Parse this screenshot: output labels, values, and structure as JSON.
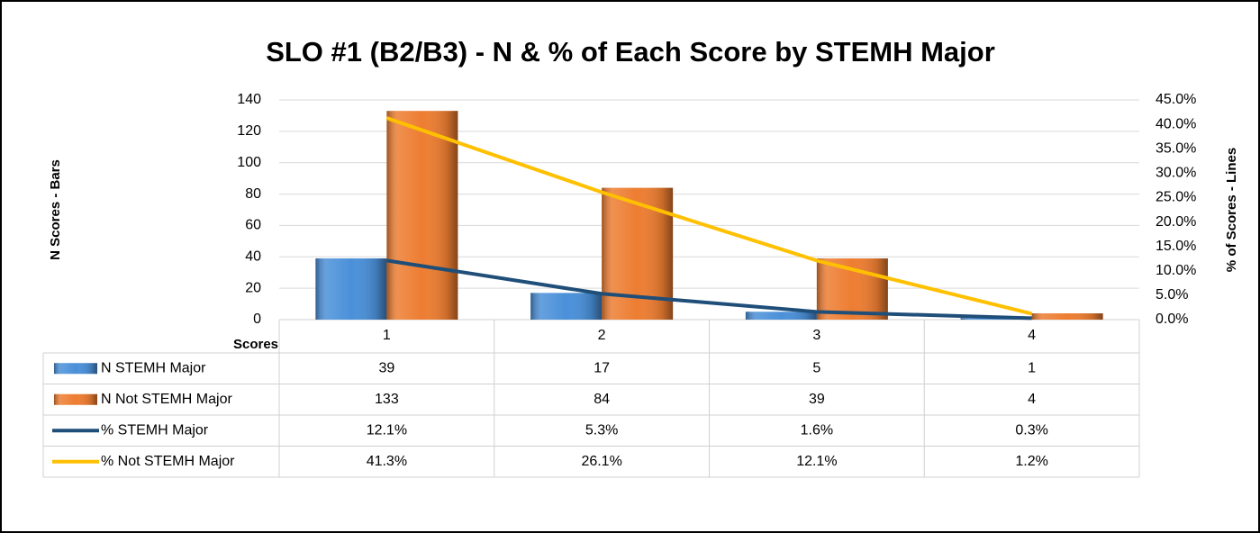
{
  "chart_data": {
    "type": "bar",
    "title": "SLO #1 (B2/B3) - N & % of Each Score by STEMH Major",
    "y_label": "N Scores - Bars",
    "y2_label": "% of Scores - Lines",
    "x_label": "Scores",
    "categories": [
      "1",
      "2",
      "3",
      "4"
    ],
    "series": [
      {
        "name": "N STEMH Major",
        "type": "bar",
        "color": "#4a90d9",
        "values": [
          39,
          17,
          5,
          1
        ]
      },
      {
        "name": "N Not STEMH Major",
        "type": "bar",
        "color": "#ed7d31",
        "values": [
          133,
          84,
          39,
          4
        ]
      },
      {
        "name": "% STEMH Major",
        "type": "line",
        "axis": "y2",
        "color": "#1f4e79",
        "values": [
          12.1,
          5.3,
          1.6,
          0.3
        ],
        "value_labels": [
          "12.1%",
          "5.3%",
          "1.6%",
          "0.3%"
        ]
      },
      {
        "name": "% Not STEMH Major",
        "type": "line",
        "axis": "y2",
        "color": "#ffc000",
        "values": [
          41.3,
          26.1,
          12.1,
          1.2
        ],
        "value_labels": [
          "41.3%",
          "26.1%",
          "12.1%",
          "1.2%"
        ]
      }
    ],
    "ylim": [
      0,
      140
    ],
    "yticks": [
      0,
      20,
      40,
      60,
      80,
      100,
      120,
      140
    ],
    "y2lim": [
      0,
      45
    ],
    "y2ticks": [
      {
        "value": 0,
        "label": "0.0%"
      },
      {
        "value": 5,
        "label": "5.0%"
      },
      {
        "value": 10,
        "label": "10.0%"
      },
      {
        "value": 15,
        "label": "15.0%"
      },
      {
        "value": 20,
        "label": "20.0%"
      },
      {
        "value": 25,
        "label": "25.0%"
      },
      {
        "value": 30,
        "label": "30.0%"
      },
      {
        "value": 35,
        "label": "35.0%"
      },
      {
        "value": 40,
        "label": "40.0%"
      },
      {
        "value": 45,
        "label": "45.0%"
      }
    ],
    "grid": true
  }
}
